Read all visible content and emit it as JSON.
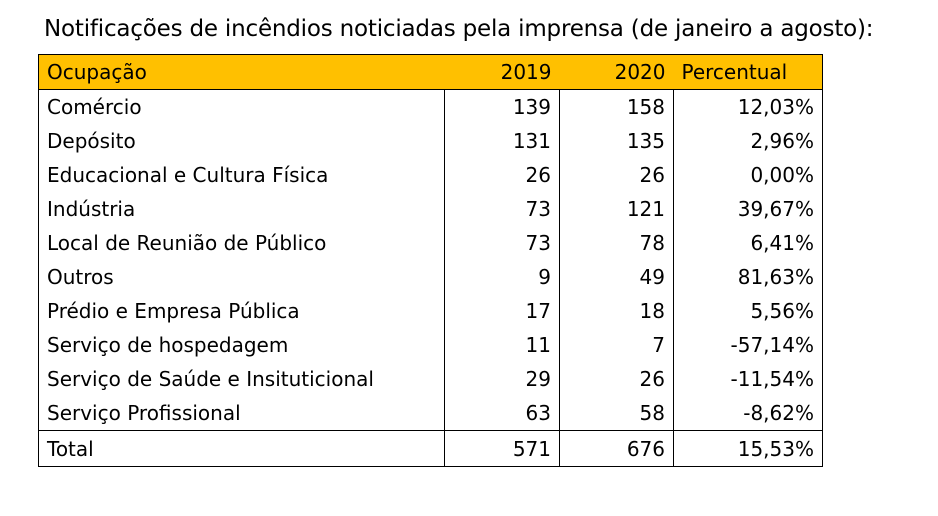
{
  "title": "Notificações de incêndios noticiadas pela imprensa (de janeiro a agosto):",
  "header": {
    "occupation": "Ocupação",
    "year1": "2019",
    "year2": "2020",
    "percent": "Percentual"
  },
  "header_color": "#ffc000",
  "rows": [
    {
      "name": "Comércio",
      "y2019": "139",
      "y2020": "158",
      "pct": "12,03%"
    },
    {
      "name": "Depósito",
      "y2019": "131",
      "y2020": "135",
      "pct": "2,96%"
    },
    {
      "name": "Educacional e Cultura Física",
      "y2019": "26",
      "y2020": "26",
      "pct": "0,00%"
    },
    {
      "name": "Indústria",
      "y2019": "73",
      "y2020": "121",
      "pct": "39,67%"
    },
    {
      "name": "Local de Reunião de Público",
      "y2019": "73",
      "y2020": "78",
      "pct": "6,41%"
    },
    {
      "name": "Outros",
      "y2019": "9",
      "y2020": "49",
      "pct": "81,63%"
    },
    {
      "name": "Prédio e Empresa Pública",
      "y2019": "17",
      "y2020": "18",
      "pct": "5,56%"
    },
    {
      "name": "Serviço de hospedagem",
      "y2019": "11",
      "y2020": "7",
      "pct": "-57,14%"
    },
    {
      "name": "Serviço de Saúde e Insituticional",
      "y2019": "29",
      "y2020": "26",
      "pct": "-11,54%"
    },
    {
      "name": "Serviço Profissional",
      "y2019": "63",
      "y2020": "58",
      "pct": "-8,62%"
    }
  ],
  "total": {
    "name": "Total",
    "y2019": "571",
    "y2020": "676",
    "pct": "15,53%"
  }
}
